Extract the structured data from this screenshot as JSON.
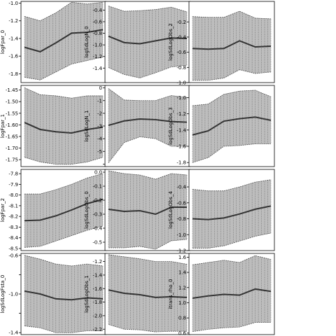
{
  "chart_data": [
    {
      "type": "line",
      "ylabel": "logFpar_0",
      "ylim": [
        -1.9,
        -0.98
      ],
      "yticks": [
        -1.8,
        -1.6,
        -1.4,
        -1.2,
        -1.0
      ],
      "ytick_labels": [
        "-1.8",
        "-1.6",
        "-1.4",
        "-1.2",
        "-1.0"
      ],
      "x": [
        0,
        1,
        2,
        3,
        4,
        5
      ],
      "mean": [
        -1.5,
        -1.55,
        -1.45,
        -1.34,
        -1.33,
        -1.3
      ],
      "lower": [
        -1.84,
        -1.87,
        -1.78,
        -1.69,
        -1.65,
        -1.61
      ],
      "upper": [
        -1.15,
        -1.2,
        -1.11,
        -0.99,
        -1.01,
        -0.99
      ]
    },
    {
      "type": "line",
      "ylabel": "logSdLogN_0",
      "ylim": [
        -1.65,
        -0.25
      ],
      "yticks": [
        -1.4,
        -1.2,
        -1.0,
        -0.8,
        -0.6,
        -0.4
      ],
      "ytick_labels": [
        "-1.4",
        "-1.2",
        "-1.0",
        "-0.8",
        "-0.6",
        "-0.4"
      ],
      "x": [
        0,
        1,
        2,
        3,
        4,
        5
      ],
      "mean": [
        -0.85,
        -0.96,
        -0.98,
        -0.93,
        -0.88,
        -0.89
      ],
      "lower": [
        -1.39,
        -1.51,
        -1.57,
        -1.48,
        -1.38,
        -1.35
      ],
      "upper": [
        -0.33,
        -0.42,
        -0.41,
        -0.39,
        -0.35,
        -0.43
      ]
    },
    {
      "type": "line",
      "ylabel": "logSdLogObs_2",
      "ylim": [
        -1.0,
        0.07
      ],
      "yticks": [
        -1.0,
        -0.8,
        -0.6,
        -0.4,
        -0.2
      ],
      "ytick_labels": [
        "-1.0",
        "-0.8",
        "-0.6",
        "-0.4",
        "-0.2"
      ],
      "x": [
        0,
        1,
        2,
        3,
        4,
        5
      ],
      "mean": [
        -0.55,
        -0.56,
        -0.55,
        -0.45,
        -0.53,
        -0.52
      ],
      "lower": [
        -0.97,
        -0.97,
        -0.94,
        -0.83,
        -0.88,
        -0.86
      ],
      "upper": [
        -0.13,
        -0.14,
        -0.14,
        -0.06,
        -0.15,
        -0.16
      ]
    },
    {
      "type": "line",
      "ylabel": "logFpar_1",
      "ylim": [
        -1.78,
        -1.43
      ],
      "yticks": [
        -1.75,
        -1.7,
        -1.65,
        -1.6,
        -1.55,
        -1.5,
        -1.45
      ],
      "ytick_labels": [
        "-1.75",
        "-1.70",
        "-1.65",
        "-1.60",
        "-1.55",
        "-1.50",
        "-1.45"
      ],
      "x": [
        0,
        1,
        2,
        3,
        4,
        5
      ],
      "mean": [
        -1.59,
        -1.62,
        -1.63,
        -1.635,
        -1.62,
        -1.61
      ],
      "lower": [
        -1.74,
        -1.76,
        -1.77,
        -1.77,
        -1.76,
        -1.74
      ],
      "upper": [
        -1.44,
        -1.47,
        -1.475,
        -1.485,
        -1.475,
        -1.475
      ]
    },
    {
      "type": "line",
      "ylabel": "logSdLogN_1",
      "ylim": [
        -6.2,
        0.2
      ],
      "yticks": [
        -6,
        -5,
        -4,
        -3,
        -2,
        -1,
        0
      ],
      "ytick_labels": [
        "",
        "-5",
        "-4",
        "-3",
        "-2",
        "-1",
        "0"
      ],
      "x": [
        0,
        1,
        2,
        3,
        4,
        5
      ],
      "mean": [
        -2.95,
        -2.6,
        -2.45,
        -2.5,
        -2.65,
        -2.7
      ],
      "lower": [
        -5.9,
        -4.3,
        -3.85,
        -4.0,
        -4.6,
        -4.6
      ],
      "upper": [
        -0.05,
        -0.95,
        -1.0,
        -1.0,
        -0.6,
        -0.75
      ]
    },
    {
      "type": "line",
      "ylabel": "logSdLogObs_3",
      "ylim": [
        -1.85,
        -0.85
      ],
      "yticks": [
        -1.8,
        -1.6,
        -1.4,
        -1.2,
        -1.0
      ],
      "ytick_labels": [
        "-1.8",
        "-1.6",
        "-1.4",
        "-1.2",
        "-1.0"
      ],
      "x": [
        0,
        1,
        2,
        3,
        4,
        5
      ],
      "mean": [
        -1.46,
        -1.41,
        -1.29,
        -1.26,
        -1.24,
        -1.28
      ],
      "lower": [
        -1.8,
        -1.74,
        -1.6,
        -1.59,
        -1.57,
        -1.57
      ],
      "upper": [
        -1.1,
        -1.08,
        -0.96,
        -0.92,
        -0.91,
        -0.99
      ]
    },
    {
      "type": "line",
      "ylabel": "logFpar_2",
      "ylim": [
        -8.52,
        -7.76
      ],
      "yticks": [
        -8.5,
        -8.4,
        -8.3,
        -8.2,
        -8.1,
        -8.0,
        -7.9,
        -7.8
      ],
      "ytick_labels": [
        "-8.5",
        "-8.4",
        "-8.3",
        "-8.2",
        "-8.1",
        "-8.0",
        "-7.9",
        "-7.8"
      ],
      "x": [
        0,
        1,
        2,
        3,
        4,
        5
      ],
      "mean": [
        -8.24,
        -8.235,
        -8.195,
        -8.14,
        -8.08,
        -8.04
      ],
      "lower": [
        -8.49,
        -8.48,
        -8.43,
        -8.38,
        -8.33,
        -8.29
      ],
      "upper": [
        -7.99,
        -7.99,
        -7.95,
        -7.9,
        -7.84,
        -7.8
      ]
    },
    {
      "type": "line",
      "ylabel": "logSdLogObs_0",
      "ylim": [
        -0.56,
        0.02
      ],
      "yticks": [
        -0.5,
        -0.4,
        -0.3,
        -0.2,
        -0.1,
        0.0
      ],
      "ytick_labels": [
        "-0.5",
        "-0.4",
        "-0.3",
        "-0.2",
        "-0.1",
        "0.0"
      ],
      "x": [
        0,
        1,
        2,
        3,
        4,
        5
      ],
      "mean": [
        -0.265,
        -0.28,
        -0.275,
        -0.3,
        -0.25,
        -0.25
      ],
      "lower": [
        -0.54,
        -0.54,
        -0.53,
        -0.55,
        -0.49,
        -0.48
      ],
      "upper": [
        0.01,
        -0.01,
        -0.02,
        -0.05,
        -0.01,
        -0.02
      ]
    },
    {
      "type": "line",
      "ylabel": "logSdLogObs_4",
      "ylim": [
        -1.2,
        -0.18
      ],
      "yticks": [
        -1.2,
        -1.0,
        -0.8,
        -0.6,
        -0.4
      ],
      "ytick_labels": [
        "-1.2",
        "-1.0",
        "-0.8",
        "-0.6",
        "-0.4"
      ],
      "x": [
        0,
        1,
        2,
        3,
        4,
        5
      ],
      "mean": [
        -0.8,
        -0.81,
        -0.79,
        -0.74,
        -0.68,
        -0.64
      ],
      "lower": [
        -1.17,
        -1.17,
        -1.14,
        -1.08,
        -1.02,
        -0.98
      ],
      "upper": [
        -0.43,
        -0.45,
        -0.45,
        -0.4,
        -0.34,
        -0.31
      ]
    },
    {
      "type": "line",
      "ylabel": "logSdLogFsta_0",
      "ylim": [
        -1.42,
        -0.58
      ],
      "yticks": [
        -1.4,
        -1.2,
        -1.0,
        -0.8,
        -0.6
      ],
      "ytick_labels": [
        "-1.4",
        "",
        "-1.0",
        "",
        "-0.6"
      ],
      "x": [
        0,
        1,
        2,
        3,
        4,
        5
      ],
      "mean": [
        -0.97,
        -1.0,
        -1.05,
        -1.06,
        -1.04,
        -1.05
      ],
      "lower": [
        -1.33,
        -1.35,
        -1.4,
        -1.4,
        -1.38,
        -1.38
      ],
      "upper": [
        -0.6,
        -0.64,
        -0.69,
        -0.71,
        -0.69,
        -0.71
      ]
    },
    {
      "type": "line",
      "ylabel": "logSdLogObs_1",
      "ylim": [
        -2.28,
        -1.08
      ],
      "yticks": [
        -2.2,
        -2.0,
        -1.8,
        -1.6,
        -1.4,
        -1.2
      ],
      "ytick_labels": [
        "-2.2",
        "-2.0",
        "-1.8",
        "-1.6",
        "-1.4",
        "-1.2"
      ],
      "x": [
        0,
        1,
        2,
        3,
        4,
        5
      ],
      "mean": [
        -1.62,
        -1.67,
        -1.69,
        -1.73,
        -1.72,
        -1.73
      ],
      "lower": [
        -2.13,
        -2.2,
        -2.21,
        -2.24,
        -2.23,
        -2.23
      ],
      "upper": [
        -1.1,
        -1.13,
        -1.16,
        -1.2,
        -1.2,
        -1.24
      ]
    },
    {
      "type": "line",
      "ylabel": "itrans_rho_0",
      "ylim": [
        0.58,
        1.65
      ],
      "yticks": [
        0.6,
        0.8,
        1.0,
        1.2,
        1.4,
        1.6
      ],
      "ytick_labels": [
        "0.6",
        "0.8",
        "1.0",
        "1.2",
        "1.4",
        "1.6"
      ],
      "x": [
        0,
        1,
        2,
        3,
        4,
        5
      ],
      "mean": [
        1.06,
        1.09,
        1.11,
        1.1,
        1.18,
        1.15
      ],
      "lower": [
        0.62,
        0.65,
        0.67,
        0.68,
        0.74,
        0.74
      ],
      "upper": [
        1.5,
        1.53,
        1.56,
        1.53,
        1.62,
        1.57
      ]
    }
  ]
}
